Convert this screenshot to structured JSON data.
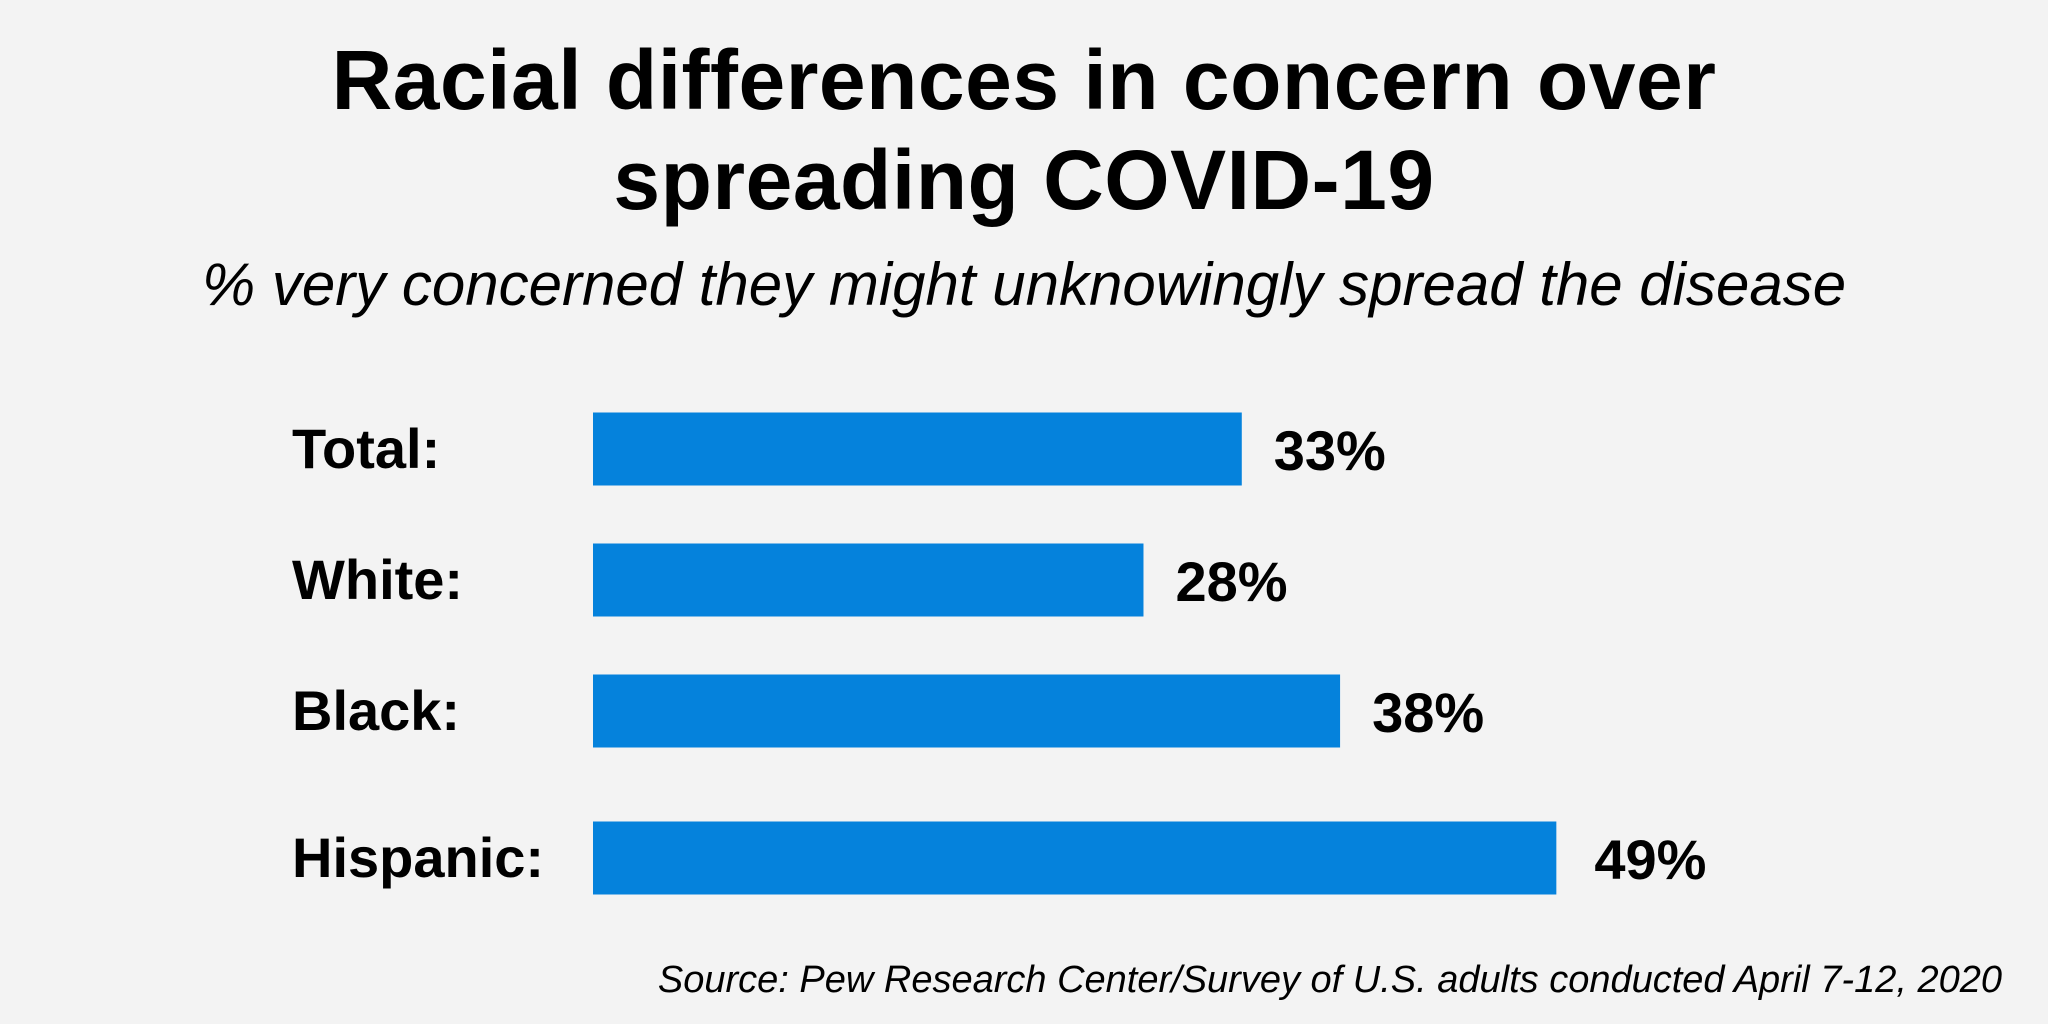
{
  "title": "Racial differences in concern over spreading COVID-19",
  "subtitle": "% very concerned they might unknowingly spread the disease",
  "source": "Source: Pew Research Center/Survey of U.S. adults conducted April 7-12, 2020",
  "colors": {
    "bar": "#0582dc",
    "background": "#f3f3f3",
    "text": "#000000"
  },
  "chart_data": {
    "type": "bar",
    "orientation": "horizontal",
    "title": "Racial differences in concern over spreading COVID-19",
    "subtitle": "% very concerned they might unknowingly spread the disease",
    "categories": [
      "Total:",
      "White:",
      "Black:",
      "Hispanic:"
    ],
    "values": [
      33,
      28,
      38,
      49
    ],
    "value_labels": [
      "33%",
      "28%",
      "38%",
      "49%"
    ],
    "unit": "%",
    "xlim": [
      0,
      49
    ],
    "grid": false,
    "legend": "none"
  }
}
